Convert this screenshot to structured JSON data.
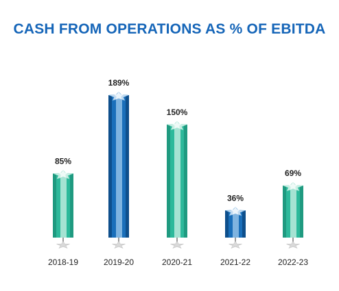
{
  "chart_data": {
    "type": "bar",
    "title": "CASH FROM OPERATIONS AS % OF EBITDA",
    "categories": [
      "2018-19",
      "2019-20",
      "2020-21",
      "2021-22",
      "2022-23"
    ],
    "values": [
      85,
      189,
      150,
      36,
      69
    ],
    "value_labels": [
      "85%",
      "189%",
      "150%",
      "36%",
      "69%"
    ],
    "unit": "%",
    "xlabel": "",
    "ylabel": "",
    "ylim": [
      0,
      200
    ],
    "grid": false,
    "legend": "none"
  },
  "colors": {
    "title": "#1565b8",
    "teal_front": "#2db99b",
    "teal_side": "#a6e3d3",
    "teal_dark": "#1f9a80",
    "teal_top": "#c9efe4",
    "blue_front": "#1a6fba",
    "blue_side": "#7fb4e0",
    "blue_dark": "#0e4f8c",
    "blue_top": "#c3dcf1",
    "pole": "#9a9a9a",
    "base_star": "#d9d9d9"
  },
  "bar_themes": [
    "teal",
    "blue",
    "teal",
    "blue",
    "teal"
  ]
}
